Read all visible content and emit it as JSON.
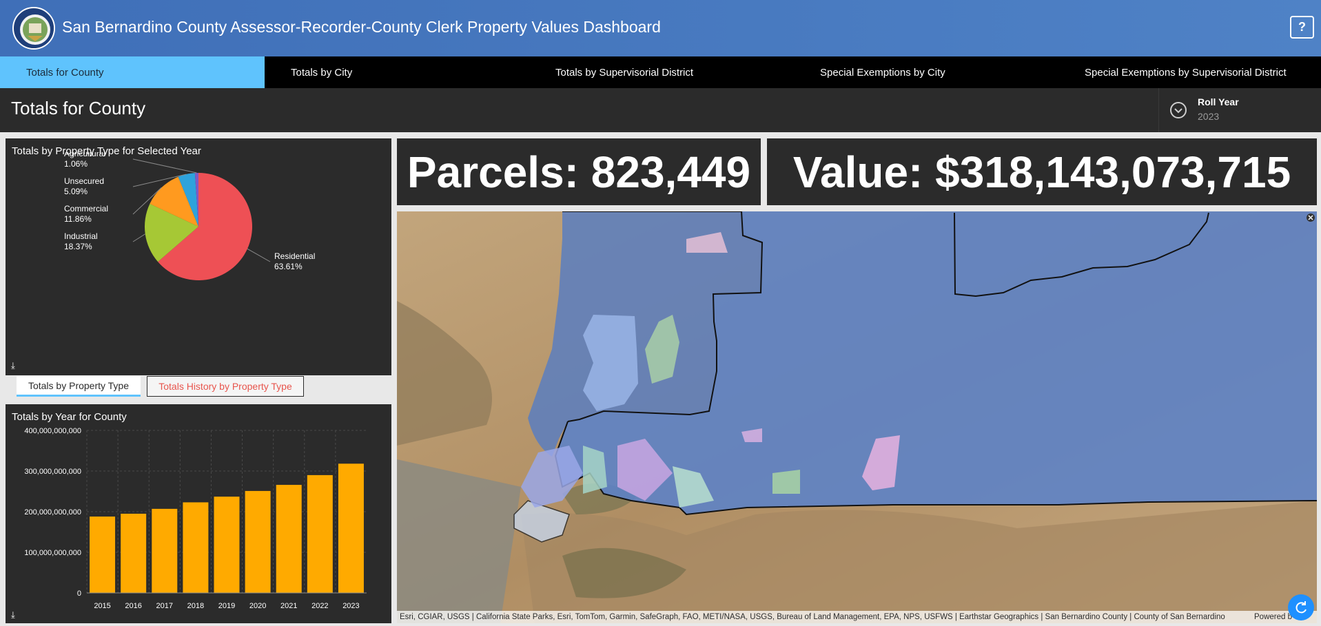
{
  "header": {
    "title": "San Bernardino County Assessor-Recorder-County Clerk Property Values Dashboard",
    "help_label": "?",
    "logo_icon": "county-seal-icon"
  },
  "nav": {
    "tabs": [
      {
        "label": "Totals for County",
        "active": true
      },
      {
        "label": "Totals by City",
        "active": false
      },
      {
        "label": "Totals by Supervisorial District",
        "active": false
      },
      {
        "label": "Special Exemptions by City",
        "active": false
      },
      {
        "label": "Special Exemptions by Supervisorial District",
        "active": false
      }
    ]
  },
  "subheader": {
    "title": "Totals for County",
    "roll_year_label": "Roll Year",
    "roll_year_value": "2023"
  },
  "pie_panel": {
    "title": "Totals by Property Type for Selected Year"
  },
  "subtabs": {
    "active_label": "Totals by Property Type",
    "inactive_label": "Totals History by Property Type"
  },
  "bar_panel": {
    "title": "Totals by Year for County"
  },
  "stats": {
    "parcels": "Parcels: 823,449",
    "value": "Value: $318,143,073,715"
  },
  "map": {
    "attribution": "Esri, CGIAR, USGS | California State Parks, Esri, TomTom, Garmin, SafeGraph, FAO, METI/NASA, USGS, Bureau of Land Management, EPA, NPS, USFWS | Earthstar Geographics | San Bernardino County | County of San Bernardino",
    "powered_by": "Powered b"
  },
  "colors": {
    "header_blue": "#4a7cc2",
    "active_tab": "#5fc3fd",
    "bar": "#ffaa00",
    "inactive_tab_text": "#e8554d"
  },
  "chart_data": [
    {
      "type": "pie",
      "title": "Totals by Property Type for Selected Year",
      "slices": [
        {
          "label": "Residential",
          "pct_label": "63.61%",
          "value": 63.61,
          "color": "#ee5055"
        },
        {
          "label": "Industrial",
          "pct_label": "18.37%",
          "value": 18.37,
          "color": "#a6c835"
        },
        {
          "label": "Commercial",
          "pct_label": "11.86%",
          "value": 11.86,
          "color": "#ff9a1f"
        },
        {
          "label": "Unsecured",
          "pct_label": "5.09%",
          "value": 5.09,
          "color": "#2ea3dc"
        },
        {
          "label": "Agricultural",
          "pct_label": "1.06%",
          "value": 1.06,
          "color": "#7d5bc4"
        }
      ]
    },
    {
      "type": "bar",
      "title": "Totals by Year for County",
      "categories": [
        "2015",
        "2016",
        "2017",
        "2018",
        "2019",
        "2020",
        "2021",
        "2022",
        "2023"
      ],
      "values": [
        188000000000,
        195000000000,
        207000000000,
        223000000000,
        237000000000,
        251000000000,
        266000000000,
        290000000000,
        318143073715
      ],
      "ylim": [
        0,
        400000000000
      ],
      "yticks": [
        "0",
        "100,000,000,000",
        "200,000,000,000",
        "300,000,000,000",
        "400,000,000,000"
      ],
      "color": "#ffaa00",
      "grid": true
    }
  ]
}
